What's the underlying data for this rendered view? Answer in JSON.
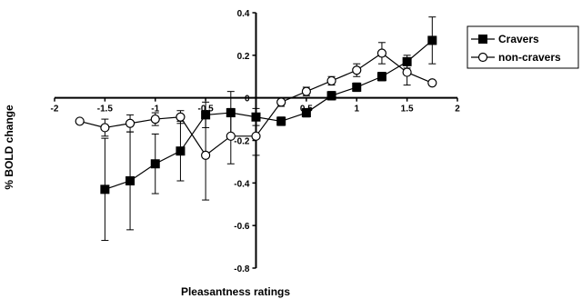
{
  "chart_data": {
    "type": "line",
    "title": "",
    "xlabel": "Pleasantness ratings",
    "ylabel": "% BOLD change",
    "xlim": [
      -2,
      2
    ],
    "ylim": [
      -0.8,
      0.4
    ],
    "x_ticks": [
      "-2",
      "-1.5",
      "-1",
      "-0.5",
      "0",
      "0.5",
      "1",
      "1.5",
      "2"
    ],
    "y_ticks": [
      "-0.8",
      "-0.6",
      "-0.4",
      "-0.2",
      "0",
      "0.2",
      "0.4"
    ],
    "grid": false,
    "legend_position": "top-right",
    "series": [
      {
        "name": "Cravers",
        "marker": "filled-square",
        "color": "#000000",
        "x": [
          -1.75,
          -1.5,
          -1.25,
          -1.0,
          -0.75,
          -0.5,
          -0.25,
          0.0,
          0.25,
          0.5,
          0.75,
          1.0,
          1.25,
          1.5,
          1.75
        ],
        "y": [
          null,
          -0.43,
          -0.39,
          -0.31,
          -0.25,
          -0.08,
          -0.07,
          -0.09,
          -0.11,
          -0.07,
          0.01,
          0.05,
          0.1,
          0.17,
          0.27
        ],
        "error": [
          null,
          0.24,
          0.23,
          0.14,
          0.14,
          0.06,
          0.1,
          0.04,
          0.02,
          0.02,
          0.02,
          0.02,
          0.02,
          0.03,
          0.11
        ]
      },
      {
        "name": "non-cravers",
        "marker": "open-circle",
        "color": "#000000",
        "x": [
          -1.75,
          -1.5,
          -1.25,
          -1.0,
          -0.75,
          -0.5,
          -0.25,
          0.0,
          0.25,
          0.5,
          0.75,
          1.0,
          1.25,
          1.5,
          1.75
        ],
        "y": [
          -0.11,
          -0.14,
          -0.12,
          -0.1,
          -0.09,
          -0.27,
          -0.18,
          -0.18,
          -0.02,
          0.03,
          0.08,
          0.13,
          0.21,
          0.12,
          0.07
        ],
        "error": [
          null,
          0.04,
          0.04,
          0.03,
          0.03,
          0.21,
          0.13,
          0.09,
          0.02,
          0.02,
          0.02,
          0.03,
          0.05,
          0.06,
          null
        ]
      }
    ]
  }
}
